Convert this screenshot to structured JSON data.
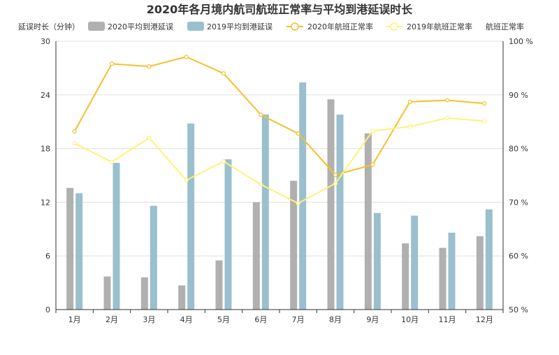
{
  "chart_data": {
    "type": "bar",
    "title": "2020年各月境内航司航班正常率与平均到港延误时长",
    "y_left_label": "延误时长（分钟）",
    "y_right_label": "航班正常率",
    "categories": [
      "1月",
      "2月",
      "3月",
      "4月",
      "5月",
      "6月",
      "7月",
      "8月",
      "9月",
      "10月",
      "11月",
      "12月"
    ],
    "y_left": {
      "min": 0,
      "max": 30,
      "ticks": [
        "0",
        "6",
        "12",
        "18",
        "24",
        "30"
      ]
    },
    "y_right": {
      "min": 50,
      "max": 100,
      "ticks": [
        "50 %",
        "60 %",
        "70 %",
        "80 %",
        "90 %",
        "100 %"
      ]
    },
    "grid": true,
    "legend_position": "top",
    "series": [
      {
        "name": "2020平均到港延误",
        "type": "bar",
        "axis": "left",
        "color": "#b0b0b0",
        "values": [
          13.6,
          3.7,
          3.6,
          2.7,
          5.5,
          12.0,
          14.4,
          23.5,
          19.7,
          7.4,
          6.9,
          8.2
        ]
      },
      {
        "name": "2019平均到港延误",
        "type": "bar",
        "axis": "left",
        "color": "#9ac0cd",
        "values": [
          13.0,
          16.4,
          11.6,
          20.8,
          16.8,
          21.8,
          25.4,
          21.8,
          10.8,
          10.5,
          8.6,
          11.2
        ]
      },
      {
        "name": "2020年航班正常率",
        "type": "line",
        "axis": "right",
        "color": "#f5c02c",
        "values": [
          83.2,
          95.8,
          95.3,
          97.1,
          94.0,
          86.3,
          82.8,
          75.1,
          77.0,
          88.7,
          89.0,
          88.4
        ]
      },
      {
        "name": "2019年航班正常率",
        "type": "line",
        "axis": "right",
        "color": "#fff27a",
        "values": [
          81.0,
          77.5,
          82.0,
          74.1,
          77.6,
          73.3,
          69.8,
          73.5,
          83.3,
          84.1,
          85.7,
          85.1
        ]
      }
    ]
  }
}
